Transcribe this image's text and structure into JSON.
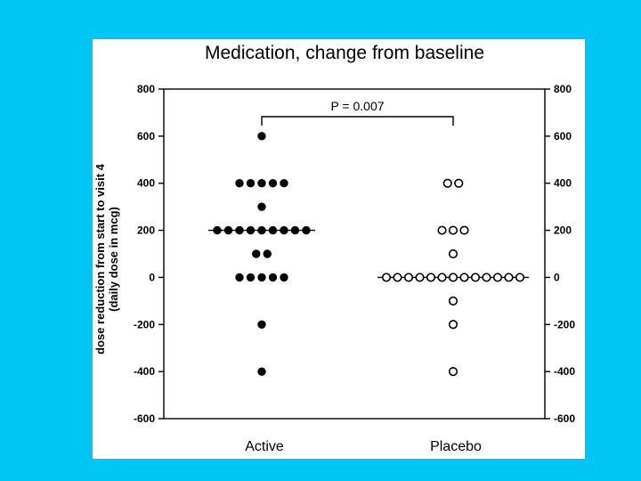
{
  "colors": {
    "background": "#00c6f6",
    "panel": "#ffffff",
    "ink": "#000000"
  },
  "chart_data": {
    "type": "scatter",
    "title": "Medication, change from baseline",
    "ylabel_line1": "dose reduction from start to visit 4",
    "ylabel_line2": "(daily dose in mcg)",
    "xlabel": "",
    "ylim": [
      -600,
      800
    ],
    "yticks": [
      800,
      600,
      400,
      200,
      0,
      -200,
      -400,
      -600
    ],
    "categories": [
      "Active",
      "Placebo"
    ],
    "series": [
      {
        "name": "Active",
        "marker": "filled-circle",
        "median": 200,
        "values": [
          600,
          400,
          400,
          400,
          400,
          400,
          300,
          200,
          200,
          200,
          200,
          200,
          200,
          200,
          200,
          200,
          100,
          100,
          0,
          0,
          0,
          0,
          0,
          -200,
          -400
        ]
      },
      {
        "name": "Placebo",
        "marker": "open-circle",
        "median": 0,
        "values": [
          400,
          400,
          200,
          200,
          200,
          100,
          0,
          0,
          0,
          0,
          0,
          0,
          0,
          0,
          0,
          0,
          0,
          0,
          0,
          -100,
          -200,
          -400
        ]
      }
    ],
    "annotation": {
      "text": "P = 0.007",
      "between": [
        "Active",
        "Placebo"
      ]
    }
  }
}
